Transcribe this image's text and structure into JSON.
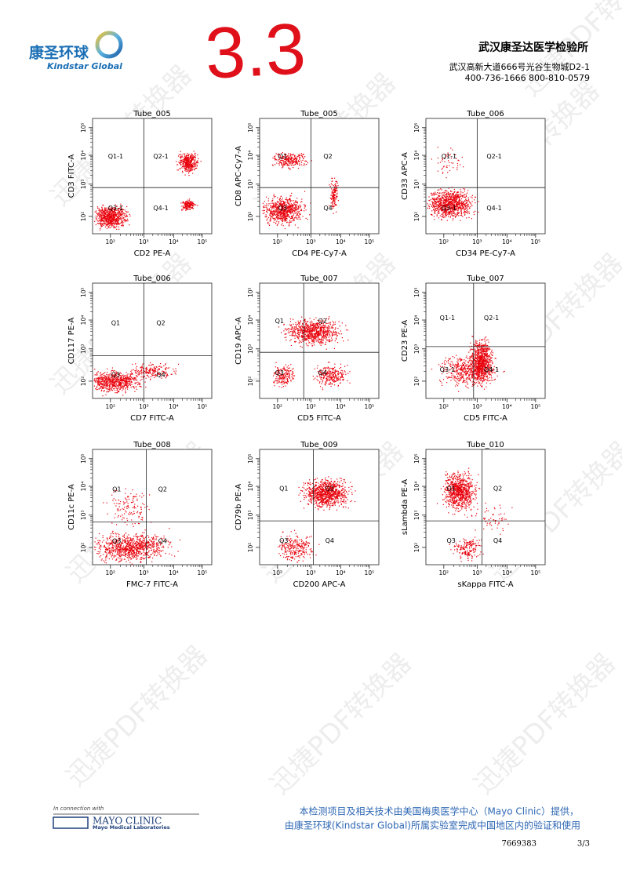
{
  "header": {
    "logo_cn": "康圣环球",
    "logo_en": "Kindstar Global",
    "handwritten": "3.3",
    "company": "武汉康圣达医学检验所",
    "address": "武汉高新大道666号光谷生物城D2-1",
    "phone": "400-736-1666 800-810-0579"
  },
  "watermark": "迅捷PDF转换器",
  "axis_ticks": [
    "10²",
    "10³",
    "10⁴",
    "10⁵"
  ],
  "plots": [
    {
      "title": "Tube_005",
      "x_label": "CD2 PE-A",
      "y_label": "CD3 FITC-A",
      "quadrants": [
        "Q1-1",
        "Q2-1",
        "Q3-1",
        "Q4-1"
      ]
    },
    {
      "title": "Tube_005",
      "x_label": "CD4 PE-Cy7-A",
      "y_label": "CD8 APC-Cy7-A",
      "quadrants": [
        "Q1",
        "Q2",
        "Q3",
        "Q4"
      ]
    },
    {
      "title": "Tube_006",
      "x_label": "CD34 PE-Cy7-A",
      "y_label": "CD33 APC-A",
      "quadrants": [
        "Q1-1",
        "Q2-1",
        "Q3-1",
        "Q4-1"
      ]
    },
    {
      "title": "Tube_006",
      "x_label": "CD7 FITC-A",
      "y_label": "CD117 PE-A",
      "quadrants": [
        "Q1",
        "Q2",
        "Q3",
        "Q4"
      ]
    },
    {
      "title": "Tube_007",
      "x_label": "CD5 FITC-A",
      "y_label": "CD19 APC-A",
      "quadrants": [
        "Q1",
        "Q2",
        "Q3",
        "Q4"
      ]
    },
    {
      "title": "Tube_007",
      "x_label": "CD5 FITC-A",
      "y_label": "CD23 PE-A",
      "quadrants": [
        "Q1-1",
        "Q2-1",
        "Q3-1",
        "Q4-1"
      ]
    },
    {
      "title": "Tube_008",
      "x_label": "FMC-7 FITC-A",
      "y_label": "CD11c PE-A",
      "quadrants": [
        "Q1",
        "Q2",
        "Q3",
        "Q4"
      ]
    },
    {
      "title": "Tube_009",
      "x_label": "CD200 APC-A",
      "y_label": "CD79b PE-A",
      "quadrants": [
        "Q1",
        "Q2",
        "Q3",
        "Q4"
      ]
    },
    {
      "title": "Tube_010",
      "x_label": "sKappa FITC-A",
      "y_label": "sLambda PE-A",
      "quadrants": [
        "Q1",
        "Q2",
        "Q3",
        "Q4"
      ]
    }
  ],
  "footer": {
    "mayo_intro": "In connection with",
    "mayo_name": "MAYO CLINIC",
    "mayo_sub": "Mayo Medical Laboratories",
    "note_1": "本检测项目及相关技术由美国梅奥医学中心（Mayo Clinic）提供，",
    "note_2": "由康圣环球(Kindstar Global)所属实验室完成中国地区内的验证和使用",
    "code": "7669383",
    "page": "3/3"
  }
}
